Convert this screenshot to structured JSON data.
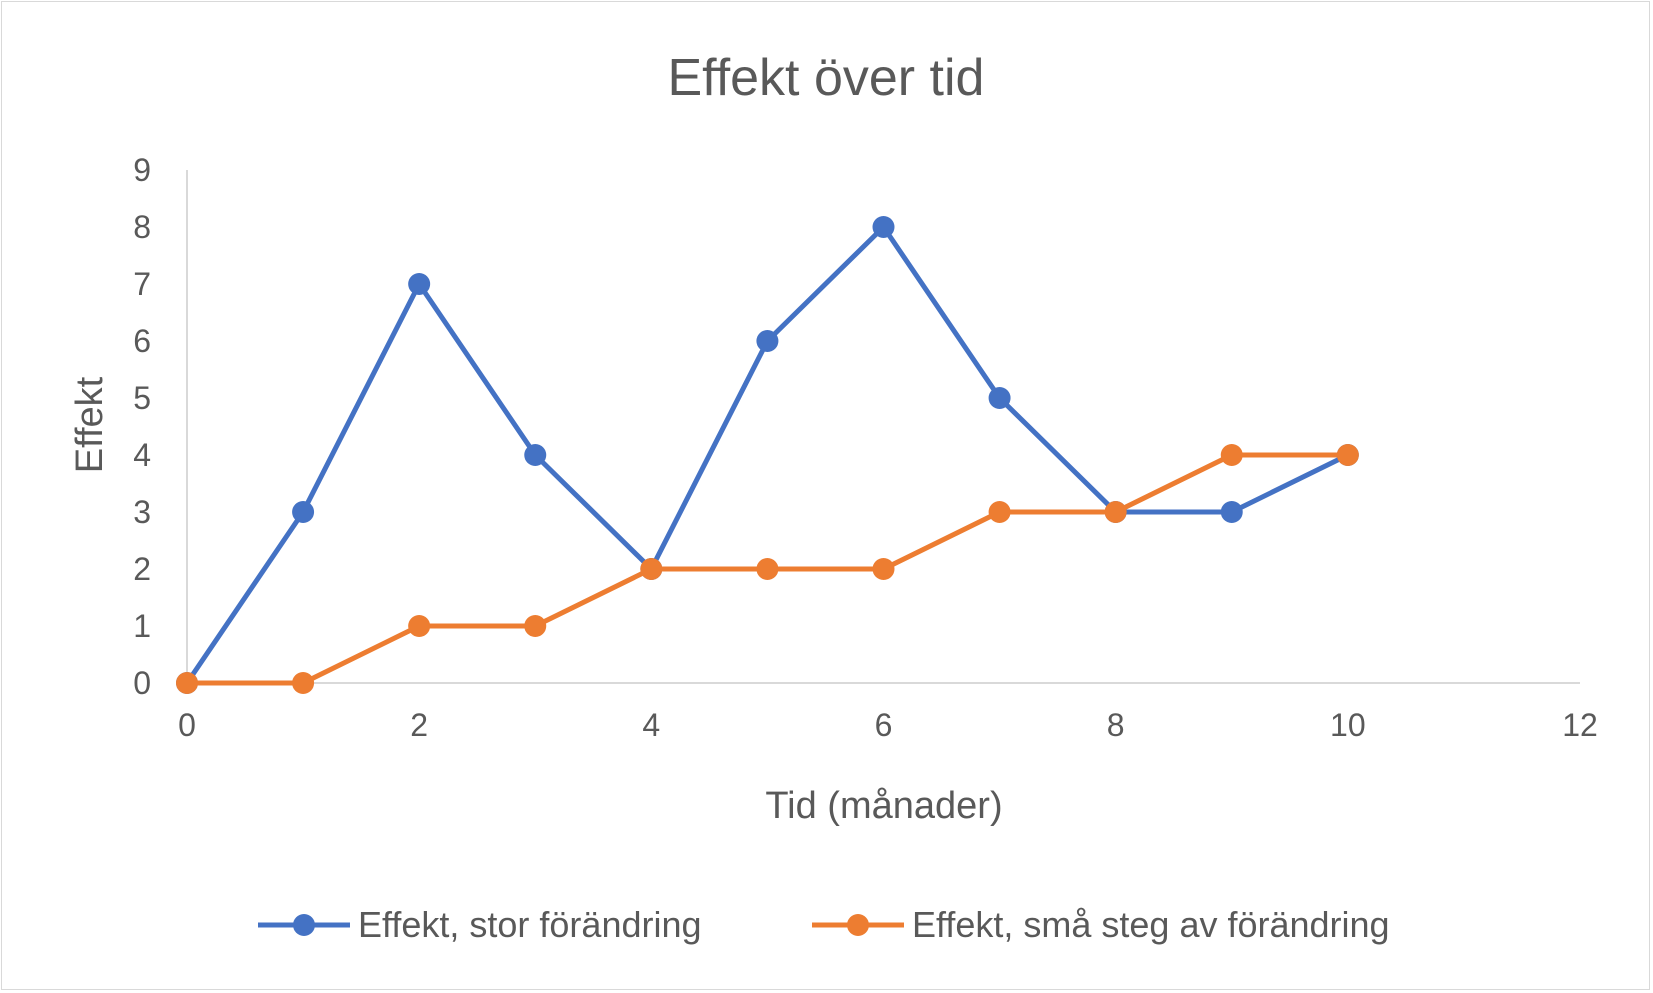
{
  "chart_data": {
    "type": "scatter",
    "title": "Effekt över tid",
    "xlabel": "Tid (månader)",
    "ylabel": "Effekt",
    "xlim": [
      0,
      12
    ],
    "ylim": [
      0,
      9
    ],
    "xticks": [
      0,
      2,
      4,
      6,
      8,
      10,
      12
    ],
    "yticks": [
      0,
      1,
      2,
      3,
      4,
      5,
      6,
      7,
      8,
      9
    ],
    "grid": false,
    "legend": "bottom",
    "series": [
      {
        "name": "Effekt, stor förändring",
        "color": "#4472c4",
        "x": [
          0,
          1,
          2,
          3,
          4,
          5,
          6,
          7,
          8,
          9,
          10
        ],
        "y": [
          0,
          3,
          7,
          4,
          2,
          6,
          8,
          5,
          3,
          3,
          4
        ]
      },
      {
        "name": "Effekt, små steg av förändring",
        "color": "#ed7d31",
        "x": [
          0,
          1,
          2,
          3,
          4,
          5,
          6,
          7,
          8,
          9,
          10
        ],
        "y": [
          0,
          0,
          1,
          1,
          2,
          2,
          2,
          3,
          3,
          4,
          4
        ]
      }
    ]
  }
}
